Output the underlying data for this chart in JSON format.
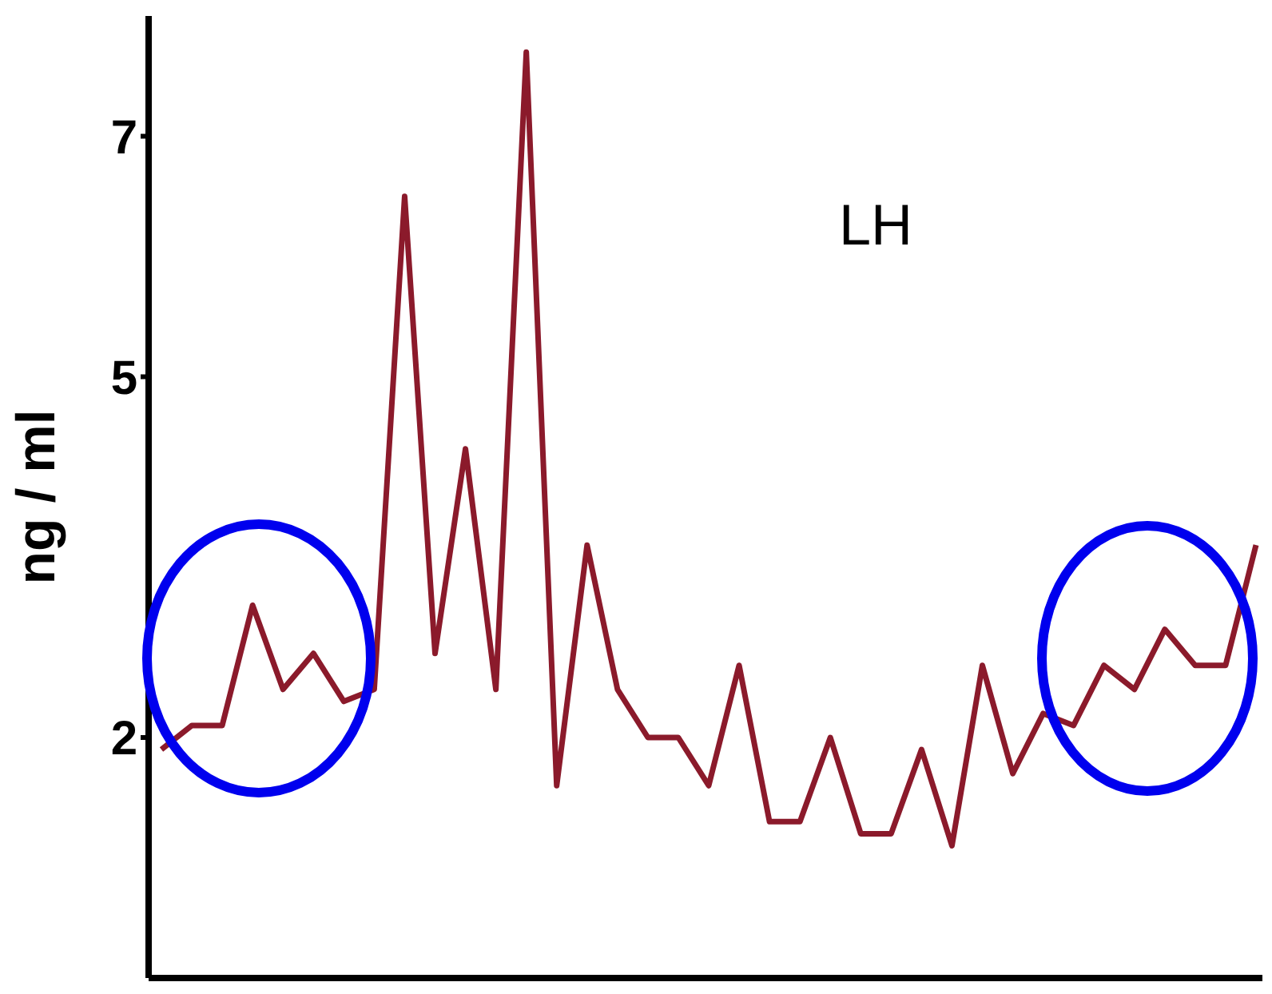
{
  "chart_data": {
    "type": "line",
    "title": "LH",
    "ylabel": "ng / ml",
    "categories": [
      null,
      null,
      null,
      null,
      null,
      null,
      null,
      null,
      null,
      null,
      null,
      null,
      null,
      null,
      null,
      null,
      null,
      null,
      null,
      null,
      null,
      null,
      null,
      null,
      null,
      null,
      null,
      null,
      null,
      null,
      null,
      null,
      null,
      null,
      null,
      null,
      null
    ],
    "series": [
      {
        "color": "#8b1a2b",
        "values": [
          1.9,
          2.1,
          2.1,
          3.1,
          2.4,
          2.7,
          2.3,
          2.4,
          6.5,
          2.7,
          4.4,
          2.4,
          7.7,
          1.6,
          3.6,
          2.4,
          2.0,
          2.0,
          1.6,
          2.6,
          1.3,
          1.3,
          2.0,
          1.2,
          1.2,
          1.9,
          1.1,
          2.6,
          1.7,
          2.2,
          2.1,
          2.6,
          2.4,
          2.9,
          2.6,
          2.6,
          3.6
        ]
      }
    ],
    "ylim": [
      0,
      8
    ],
    "yticks": [
      2,
      5,
      7
    ],
    "marker": "none",
    "line_style": "solid",
    "tick_labels": "y"
  }
}
